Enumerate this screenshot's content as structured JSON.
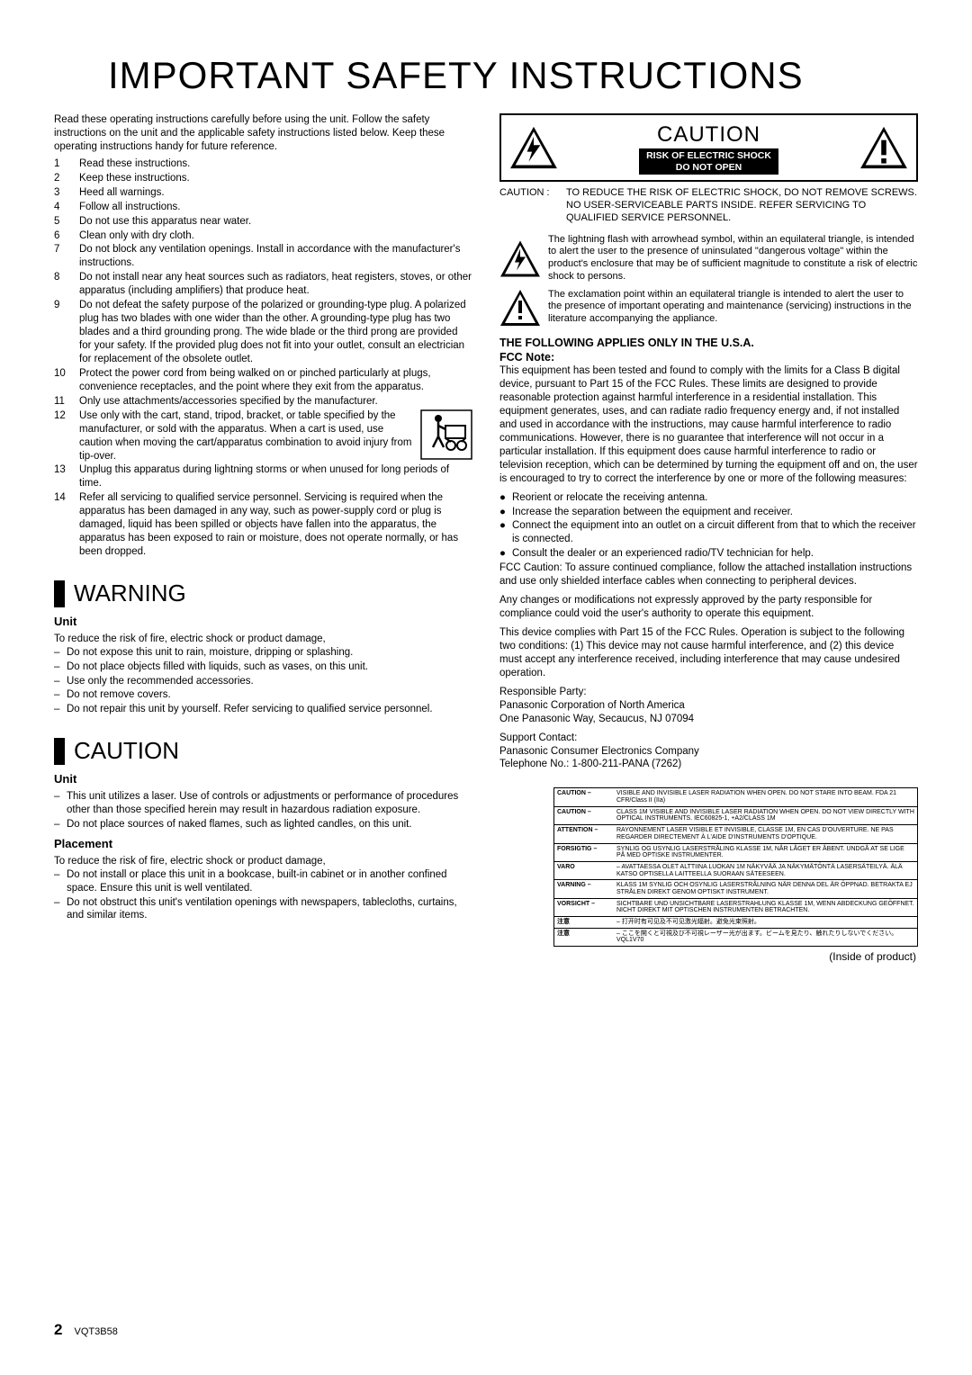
{
  "title": "IMPORTANT SAFETY INSTRUCTIONS",
  "intro": "Read these operating instructions carefully before using the unit. Follow the safety instructions on the unit and the applicable safety instructions listed below. Keep these operating instructions handy for future reference.",
  "instructions": [
    "Read these instructions.",
    "Keep these instructions.",
    "Heed all warnings.",
    "Follow all instructions.",
    "Do not use this apparatus near water.",
    "Clean only with dry cloth.",
    "Do not block any ventilation openings. Install in accordance with the manufacturer's instructions.",
    "Do not install near any heat sources such as radiators, heat registers, stoves, or other apparatus (including amplifiers) that produce heat.",
    "Do not defeat the safety purpose of the polarized or grounding-type plug. A polarized plug has two blades with one wider than the other. A grounding-type plug has two blades and a third grounding prong. The wide blade or the third prong are provided for your safety. If the provided plug does not fit into your outlet, consult an electrician for replacement of the obsolete outlet.",
    "Protect the power cord from being walked on or pinched particularly at plugs, convenience receptacles, and the point where they exit from the apparatus.",
    "Only use attachments/accessories specified by the manufacturer.",
    "Use only with the cart, stand, tripod, bracket, or table specified by the manufacturer, or sold with the apparatus. When a cart is used, use caution when moving the cart/apparatus combination to avoid injury from tip-over.",
    "Unplug this apparatus during lightning storms or when unused for long periods of time.",
    "Refer all servicing to qualified service personnel. Servicing is required when the apparatus has been damaged in any way, such as power-supply cord or plug is damaged, liquid has been spilled or objects have fallen into the apparatus, the apparatus has been exposed to rain or moisture, does not operate normally, or has been dropped."
  ],
  "warning": {
    "heading": "WARNING",
    "unit_head": "Unit",
    "unit_intro": "To reduce the risk of fire, electric shock or product damage,",
    "unit_items": [
      "Do not expose this unit to rain, moisture, dripping or splashing.",
      "Do not place objects filled with liquids, such as vases, on this unit.",
      "Use only the recommended accessories.",
      "Do not remove covers.",
      "Do not repair this unit by yourself. Refer servicing to qualified service personnel."
    ]
  },
  "caution_sec": {
    "heading": "CAUTION",
    "unit_head": "Unit",
    "unit_items": [
      "This unit utilizes a laser. Use of controls or adjustments or performance of procedures other than those specified herein may result in hazardous radiation exposure.",
      "Do not place sources of naked flames, such as lighted candles, on this unit."
    ],
    "placement_head": "Placement",
    "placement_intro": "To reduce the risk of fire, electric shock or product damage,",
    "placement_items": [
      "Do not install or place this unit in a bookcase, built-in cabinet or in another confined space. Ensure this unit is well ventilated.",
      "Do not obstruct this unit's ventilation openings with newspapers, tablecloths, curtains, and similar items."
    ]
  },
  "caution_box": {
    "big": "CAUTION",
    "line1": "RISK OF ELECTRIC SHOCK",
    "line2": "DO NOT OPEN"
  },
  "caution_text_label": "CAUTION :",
  "caution_text_body": "TO REDUCE THE RISK OF ELECTRIC SHOCK, DO NOT REMOVE SCREWS. NO USER-SERVICEABLE PARTS INSIDE. REFER SERVICING TO QUALIFIED SERVICE PERSONNEL.",
  "bolt_text": "The lightning flash with arrowhead symbol, within an equilateral triangle, is intended to alert the user to the presence of uninsulated \"dangerous voltage\" within the product's enclosure that may be of sufficient magnitude to constitute a risk of electric shock to persons.",
  "excl_text": "The exclamation point within an equilateral triangle is intended to alert the user to the presence of important operating and maintenance (servicing) instructions in the literature accompanying the appliance.",
  "fcc": {
    "head1": "THE FOLLOWING APPLIES ONLY IN THE U.S.A.",
    "head2": "FCC Note:",
    "p1": "This equipment has been tested and found to comply with the limits for a Class B digital device, pursuant to Part 15 of the FCC Rules. These limits are designed to provide reasonable protection against harmful interference in a residential installation. This equipment generates, uses, and can radiate radio frequency energy and, if not installed and used in accordance with the instructions, may cause harmful interference to radio communications. However, there is no guarantee that interference will not occur in a particular installation. If this equipment does cause harmful interference to radio or television reception, which can be determined by turning the equipment off and on, the user is encouraged to try to correct the interference by one or more of the following measures:",
    "bullets": [
      "Reorient or relocate the receiving antenna.",
      "Increase the separation between the equipment and receiver.",
      "Connect the equipment into an outlet on a circuit different from that to which the receiver is connected.",
      "Consult the dealer or an experienced radio/TV technician for help."
    ],
    "p2": "FCC Caution: To assure continued compliance, follow the attached installation instructions and use only shielded interface cables when connecting to peripheral devices.",
    "p3": "Any changes or modifications not expressly approved by the party responsible for compliance could void the user's authority to operate this equipment.",
    "p4": "This device complies with Part 15 of the FCC Rules. Operation is subject to the following two conditions: (1) This device may not cause harmful interference, and (2) this device must accept any interference received, including interference that may cause undesired operation.",
    "resp1": "Responsible Party:",
    "resp2": "Panasonic Corporation of North America",
    "resp3": "One Panasonic Way, Secaucus, NJ 07094",
    "sup1": "Support Contact:",
    "sup2": "Panasonic Consumer Electronics Company",
    "sup3": "Telephone No.: 1-800-211-PANA (7262)"
  },
  "laser_rows": [
    {
      "l": "CAUTION –",
      "r": "VISIBLE AND INVISIBLE LASER RADIATION WHEN OPEN. DO NOT STARE INTO BEAM.                    FDA 21 CFR/Class II (IIa)"
    },
    {
      "l": "CAUTION –",
      "r": "CLASS 1M VISIBLE AND INVISIBLE LASER RADIATION WHEN OPEN. DO NOT VIEW DIRECTLY WITH OPTICAL INSTRUMENTS.   IEC60825-1, +A2/CLASS 1M"
    },
    {
      "l": "ATTENTION –",
      "r": "RAYONNEMENT LASER VISIBLE ET INVISIBLE, CLASSE 1M, EN CAS D'OUVERTURE. NE PAS REGARDER DIRECTEMENT À L'AIDE D'INSTRUMENTS D'OPTIQUE."
    },
    {
      "l": "FORSIGTIG –",
      "r": "SYNLIG OG USYNLIG LASERSTRÅLING KLASSE 1M, NÅR LÅGET ER ÅBENT. UNDGÅ AT SE LIGE PÅ MED OPTISKE INSTRUMENTER."
    },
    {
      "l": "VARO",
      "r": "– AVATTAESSA OLET ALTTIINA LUOKAN 1M NÄKYVÄÄ JA NÄKYMÄTÖNTÄ LASERSÄTEILYÄ. ÄLÄ KATSO OPTISELLA LAITTEELLA SUORAAN SÄTEESEEN."
    },
    {
      "l": "VARNING –",
      "r": "KLASS 1M SYNLIG OCH OSYNLIG LASERSTRÅLNING NÄR DENNA DEL ÄR ÖPPNAD. BETRAKTA EJ STRÅLEN DIREKT GENOM OPTISKT INSTRUMENT."
    },
    {
      "l": "VORSICHT –",
      "r": "SICHTBARE UND UNSICHTBARE LASERSTRAHLUNG KLASSE 1M, WENN ABDECKUNG GEÖFFNET. NICHT DIREKT MIT OPTISCHEN INSTRUMENTEN BETRACHTEN."
    },
    {
      "l": "注意",
      "r": "– 打开时有可见及不可见激光辐射。避免光束照射。"
    },
    {
      "l": "注意",
      "r": "– ここを開くと可視及び不可視レーザー光が出ます。ビームを見たり、触れたりしないでください。            VQL1V70"
    }
  ],
  "inside_label": "(Inside of product)",
  "page_num": "2",
  "doc_id": "VQT3B58"
}
